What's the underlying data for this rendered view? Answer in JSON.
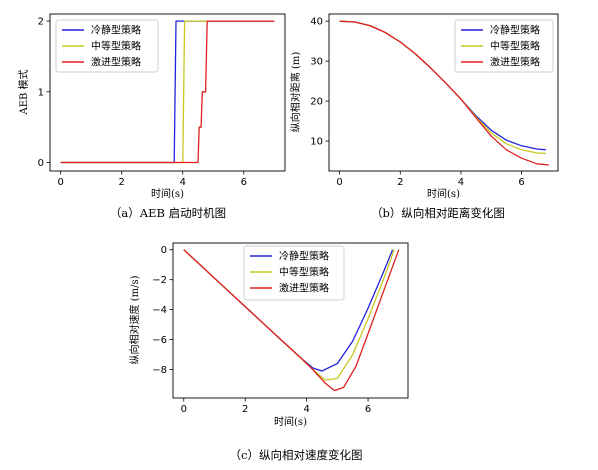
{
  "chart_data": [
    {
      "type": "line",
      "caption": "（a）AEB 启动时机图",
      "xlabel": "时间(s)",
      "ylabel": "AEB 模式",
      "xlim": [
        -0.35,
        7.35
      ],
      "ylim": [
        -0.12,
        2.1
      ],
      "xticks": [
        0,
        2,
        4,
        6
      ],
      "yticks": [
        0,
        1,
        2
      ],
      "grid": false,
      "legend": "top-left",
      "series": [
        {
          "name": "冷静型策略",
          "color": "#2222dd",
          "x": [
            0,
            3.72,
            3.78,
            7.0
          ],
          "y": [
            0,
            0,
            2,
            2
          ]
        },
        {
          "name": "中等型策略",
          "color": "#c8c820",
          "x": [
            0,
            4.0,
            4.06,
            7.0
          ],
          "y": [
            0,
            0,
            2,
            2
          ]
        },
        {
          "name": "激进型策略",
          "color": "#e01f1f",
          "x": [
            0,
            4.5,
            4.54,
            4.6,
            4.64,
            4.75,
            4.8,
            7.0
          ],
          "y": [
            0,
            0,
            0.5,
            0.5,
            1,
            1,
            2,
            2
          ]
        }
      ]
    },
    {
      "type": "line",
      "caption": "（b）纵向相对距离变化图",
      "xlabel": "时间(s)",
      "ylabel": "纵向相对距离 (m)",
      "xlim": [
        -0.35,
        7.2
      ],
      "ylim": [
        2.5,
        41.8
      ],
      "xticks": [
        0,
        2,
        4,
        6
      ],
      "yticks": [
        10,
        20,
        30,
        40
      ],
      "grid": false,
      "legend": "top-right",
      "series": [
        {
          "name": "冷静型策略",
          "color": "#2222dd",
          "x": [
            0,
            0.5,
            1,
            1.5,
            2,
            2.5,
            3,
            3.5,
            4,
            4.5,
            5,
            5.5,
            6,
            6.5,
            6.8
          ],
          "y": [
            40,
            39.8,
            38.9,
            37.2,
            34.8,
            31.8,
            28.3,
            24.5,
            20.5,
            16.3,
            12.7,
            10.2,
            8.8,
            8.0,
            7.8
          ]
        },
        {
          "name": "中等型策略",
          "color": "#c8c820",
          "x": [
            0,
            0.5,
            1,
            1.5,
            2,
            2.5,
            3,
            3.5,
            4,
            4.5,
            5,
            5.5,
            6,
            6.5,
            6.8
          ],
          "y": [
            40,
            39.8,
            38.9,
            37.2,
            34.8,
            31.8,
            28.3,
            24.5,
            20.5,
            16.0,
            12.0,
            9.3,
            7.8,
            7.0,
            6.9
          ]
        },
        {
          "name": "激进型策略",
          "color": "#e01f1f",
          "x": [
            0,
            0.5,
            1,
            1.5,
            2,
            2.5,
            3,
            3.5,
            4,
            4.5,
            5,
            5.5,
            6,
            6.5,
            6.9
          ],
          "y": [
            40,
            39.8,
            38.9,
            37.2,
            34.8,
            31.8,
            28.3,
            24.5,
            20.5,
            15.8,
            11.2,
            7.8,
            5.7,
            4.3,
            4.0
          ]
        }
      ]
    },
    {
      "type": "line",
      "caption": "（c）纵向相对速度变化图",
      "xlabel": "时间(s)",
      "ylabel": "纵向相对速度 (m/s)",
      "xlim": [
        -0.35,
        7.3
      ],
      "ylim": [
        -9.9,
        0.45
      ],
      "xticks": [
        0,
        2,
        4,
        6
      ],
      "yticks": [
        0,
        -2,
        -4,
        -6,
        -8
      ],
      "grid": false,
      "legend": "top-center",
      "series": [
        {
          "name": "冷静型策略",
          "color": "#2222dd",
          "x": [
            0,
            1,
            2,
            3,
            3.8,
            4.2,
            4.5,
            5.0,
            5.5,
            6.0,
            6.5,
            6.8
          ],
          "y": [
            0,
            -1.9,
            -3.8,
            -5.7,
            -7.2,
            -7.9,
            -8.1,
            -7.6,
            -6.1,
            -3.9,
            -1.5,
            0
          ]
        },
        {
          "name": "中等型策略",
          "color": "#c8c820",
          "x": [
            0,
            1,
            2,
            3,
            3.8,
            4.2,
            4.6,
            5.0,
            5.5,
            6.0,
            6.5,
            6.85
          ],
          "y": [
            0,
            -1.9,
            -3.8,
            -5.7,
            -7.2,
            -8.0,
            -8.7,
            -8.6,
            -7.0,
            -4.6,
            -2.0,
            0
          ]
        },
        {
          "name": "激进型策略",
          "color": "#e01f1f",
          "x": [
            0,
            1,
            2,
            3,
            3.8,
            4.2,
            4.6,
            4.9,
            5.2,
            5.6,
            6.0,
            6.5,
            7.0
          ],
          "y": [
            0,
            -1.9,
            -3.8,
            -5.7,
            -7.2,
            -8.0,
            -8.9,
            -9.4,
            -9.2,
            -7.8,
            -5.6,
            -2.8,
            0
          ]
        }
      ]
    }
  ]
}
